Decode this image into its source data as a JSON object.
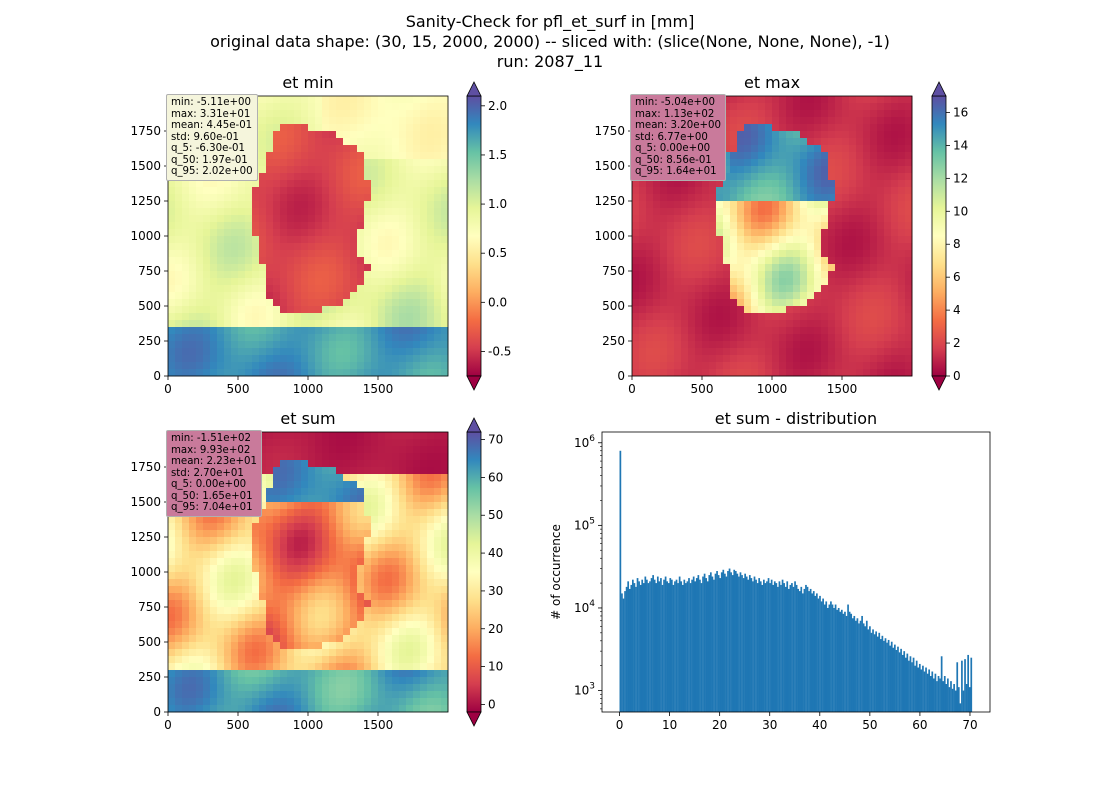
{
  "title": {
    "line1": "Sanity-Check for pfl_et_surf in [mm]",
    "line2": "original data shape: (30, 15, 2000, 2000) -- sliced with: (slice(None, None, None), -1)",
    "line3": "run: 2087_11"
  },
  "chart_data": [
    {
      "type": "heatmap",
      "title": "et min",
      "colormap": "Spectral",
      "xlim": [
        0,
        2000
      ],
      "ylim": [
        0,
        2000
      ],
      "x_ticks": [
        "0",
        "500",
        "1000",
        "1500"
      ],
      "y_ticks": [
        "0",
        "250",
        "500",
        "750",
        "1000",
        "1250",
        "1500",
        "1750"
      ],
      "colorbar": {
        "range": [
          -0.75,
          2.1
        ],
        "ticks": [
          "-0.5",
          "0.0",
          "0.5",
          "1.0",
          "1.5",
          "2.0"
        ],
        "extend": "both"
      },
      "stats": [
        "min: -5.11e+00",
        "max: 3.31e+01",
        "mean: 4.45e-01",
        "std: 9.60e-01",
        "q_5: -6.30e-01",
        "q_50: 1.97e-01",
        "q_95: 2.02e+00"
      ],
      "stats_box_color": "#f5f5dc"
    },
    {
      "type": "heatmap",
      "title": "et max",
      "colormap": "Spectral",
      "xlim": [
        0,
        2000
      ],
      "ylim": [
        0,
        2000
      ],
      "x_ticks": [
        "0",
        "500",
        "1000",
        "1500"
      ],
      "y_ticks": [
        "0",
        "250",
        "500",
        "750",
        "1000",
        "1250",
        "1500",
        "1750"
      ],
      "colorbar": {
        "range": [
          0,
          17
        ],
        "ticks": [
          "0",
          "2",
          "4",
          "6",
          "8",
          "10",
          "12",
          "14",
          "16"
        ],
        "extend": "both"
      },
      "stats": [
        "min: -5.04e+00",
        "max: 1.13e+02",
        "mean: 3.20e+00",
        "std: 6.77e+00",
        "q_5: 0.00e+00",
        "q_50: 8.56e-01",
        "q_95: 1.64e+01"
      ],
      "stats_box_color": "#c97a9b"
    },
    {
      "type": "heatmap",
      "title": "et sum",
      "colormap": "Spectral",
      "xlim": [
        0,
        2000
      ],
      "ylim": [
        0,
        2000
      ],
      "x_ticks": [
        "0",
        "500",
        "1000",
        "1500"
      ],
      "y_ticks": [
        "0",
        "250",
        "500",
        "750",
        "1000",
        "1250",
        "1500",
        "1750"
      ],
      "colorbar": {
        "range": [
          -2,
          72
        ],
        "ticks": [
          "0",
          "10",
          "20",
          "30",
          "40",
          "50",
          "60",
          "70"
        ],
        "extend": "both"
      },
      "stats": [
        "min: -1.51e+02",
        "max: 9.93e+02",
        "mean: 2.23e+01",
        "std: 2.70e+01",
        "q_5: 0.00e+00",
        "q_50: 1.65e+01",
        "q_95: 7.04e+01"
      ],
      "stats_box_color": "#c97a9b"
    },
    {
      "type": "bar",
      "title": "et sum - distribution",
      "ylabel": "# of occurrence",
      "xlabel": "",
      "y_scale": "log",
      "xlim": [
        -3.5,
        74
      ],
      "ylim": [
        550,
        1350000
      ],
      "x_ticks": [
        0,
        10,
        20,
        30,
        40,
        50,
        60,
        70
      ],
      "y_ticks": [
        {
          "value": 1000,
          "base": "10",
          "exp": "3"
        },
        {
          "value": 10000,
          "base": "10",
          "exp": "4"
        },
        {
          "value": 100000,
          "base": "10",
          "exp": "5"
        },
        {
          "value": 1000000,
          "base": "10",
          "exp": "6"
        }
      ],
      "bin_range": [
        0,
        70.4
      ],
      "bar_color": "#1f77b4",
      "counts": [
        800000,
        15000,
        13000,
        16000,
        18000,
        21000,
        17000,
        19000,
        22000,
        20000,
        18000,
        23000,
        21000,
        19000,
        22000,
        20000,
        24000,
        22000,
        20000,
        21000,
        23000,
        25000,
        22000,
        20000,
        24000,
        21000,
        23000,
        19000,
        22000,
        24000,
        21000,
        20000,
        23000,
        22000,
        19000,
        21000,
        22000,
        20000,
        24000,
        21000,
        19000,
        22000,
        20000,
        21000,
        23000,
        20000,
        22000,
        24000,
        21000,
        23000,
        25000,
        22000,
        20000,
        24000,
        26000,
        23000,
        21000,
        25000,
        27000,
        24000,
        22000,
        26000,
        28000,
        25000,
        23000,
        27000,
        29000,
        26000,
        24000,
        28000,
        30000,
        27000,
        25000,
        29000,
        28000,
        26000,
        24000,
        27000,
        25000,
        23000,
        26000,
        24000,
        22000,
        25000,
        23000,
        21000,
        24000,
        22000,
        20000,
        23000,
        21000,
        19000,
        22000,
        20000,
        21000,
        23000,
        20000,
        22000,
        19000,
        21000,
        20000,
        18000,
        21000,
        19000,
        22000,
        20000,
        18000,
        21000,
        17000,
        19000,
        20000,
        18000,
        21000,
        19000,
        17000,
        16000,
        18000,
        15000,
        17000,
        19000,
        18000,
        16000,
        17000,
        15000,
        16000,
        14000,
        15000,
        13000,
        14000,
        12000,
        13000,
        11000,
        12000,
        10000,
        11000,
        12000,
        11000,
        10000,
        11000,
        9500,
        10000,
        9000,
        9500,
        8500,
        9000,
        8000,
        11000,
        9000,
        8500,
        7500,
        8000,
        7000,
        7500,
        6500,
        7000,
        8000,
        6500,
        6000,
        7000,
        5500,
        6000,
        5000,
        5500,
        4800,
        5200,
        4500,
        5000,
        4200,
        4600,
        4000,
        4300,
        3800,
        4100,
        3500,
        3900,
        3300,
        3600,
        3100,
        3400,
        2900,
        3200,
        2700,
        3000,
        2500,
        2800,
        2300,
        2600,
        2200,
        2500,
        2000,
        2300,
        1900,
        2100,
        1800,
        2000,
        1700,
        1900,
        1600,
        1800,
        1500,
        1700,
        1400,
        1600,
        1300,
        1500,
        1400,
        2600,
        1300,
        1500,
        1200,
        1400,
        1100,
        1300,
        1050,
        1200,
        1000,
        2200,
        1100,
        700,
        2300,
        1000,
        2400,
        1200,
        2700,
        1100,
        2500
      ]
    }
  ]
}
